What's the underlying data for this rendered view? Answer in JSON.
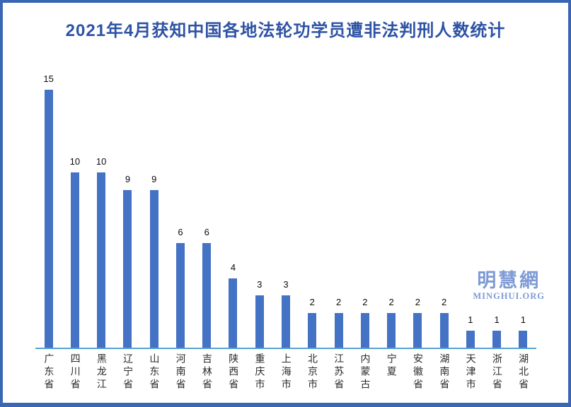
{
  "header": {
    "title": "2021年4月获知中国各地法轮功学员遭非法判刑人数统计"
  },
  "watermark": {
    "logo_text": "明慧網",
    "site_text": "MINGHUI.ORG"
  },
  "colors": {
    "bar": "#4472c4",
    "title": "#2e53a4",
    "frame_border": "#3a67b4",
    "axis_line": "#55a0d5",
    "watermark": "#7e9ad5",
    "value_label": "#0d0d0d",
    "category_label": "#2b2b2b"
  },
  "chart_data": {
    "type": "bar",
    "title": "2021年4月获知中国各地法轮功学员遭非法判刑人数统计",
    "categories": [
      "广东省",
      "四川省",
      "黑龙江",
      "辽宁省",
      "山东省",
      "河南省",
      "吉林省",
      "陕西省",
      "重庆市",
      "上海市",
      "北京市",
      "江苏省",
      "内蒙古",
      "宁夏",
      "安徽省",
      "湖南省",
      "天津市",
      "浙江省",
      "湖北省"
    ],
    "values": [
      15,
      10,
      10,
      9,
      9,
      6,
      6,
      4,
      3,
      3,
      2,
      2,
      2,
      2,
      2,
      2,
      1,
      1,
      1
    ],
    "xlabel": "",
    "ylabel": "",
    "ylim": [
      0,
      15.6
    ],
    "data_labels": true,
    "grid": false,
    "legend": false,
    "x_axis_line": true,
    "y_axis_line": false
  }
}
